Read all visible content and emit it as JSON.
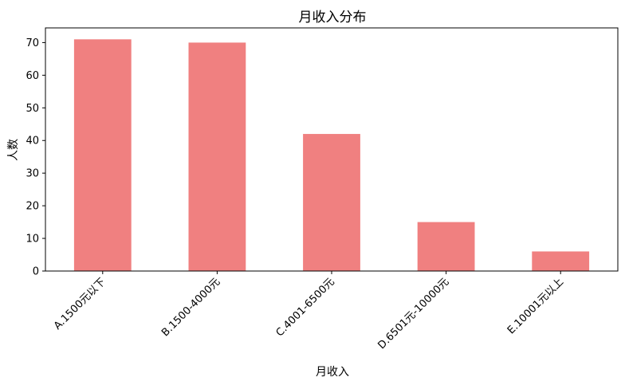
{
  "chart_data": {
    "type": "bar",
    "title": "月收入分布",
    "xlabel": "月收入",
    "ylabel": "人数",
    "categories": [
      "A.1500元以下",
      "B.1500-4000元",
      "C.4001-6500元",
      "D.6501元-10000元",
      "E.10001元以上"
    ],
    "values": [
      71,
      70,
      42,
      15,
      6
    ],
    "ylim": [
      0,
      74.5
    ],
    "yticks": [
      0,
      10,
      20,
      30,
      40,
      50,
      60,
      70
    ],
    "bar_color": "#f08080",
    "grid": false,
    "legend": "none"
  }
}
